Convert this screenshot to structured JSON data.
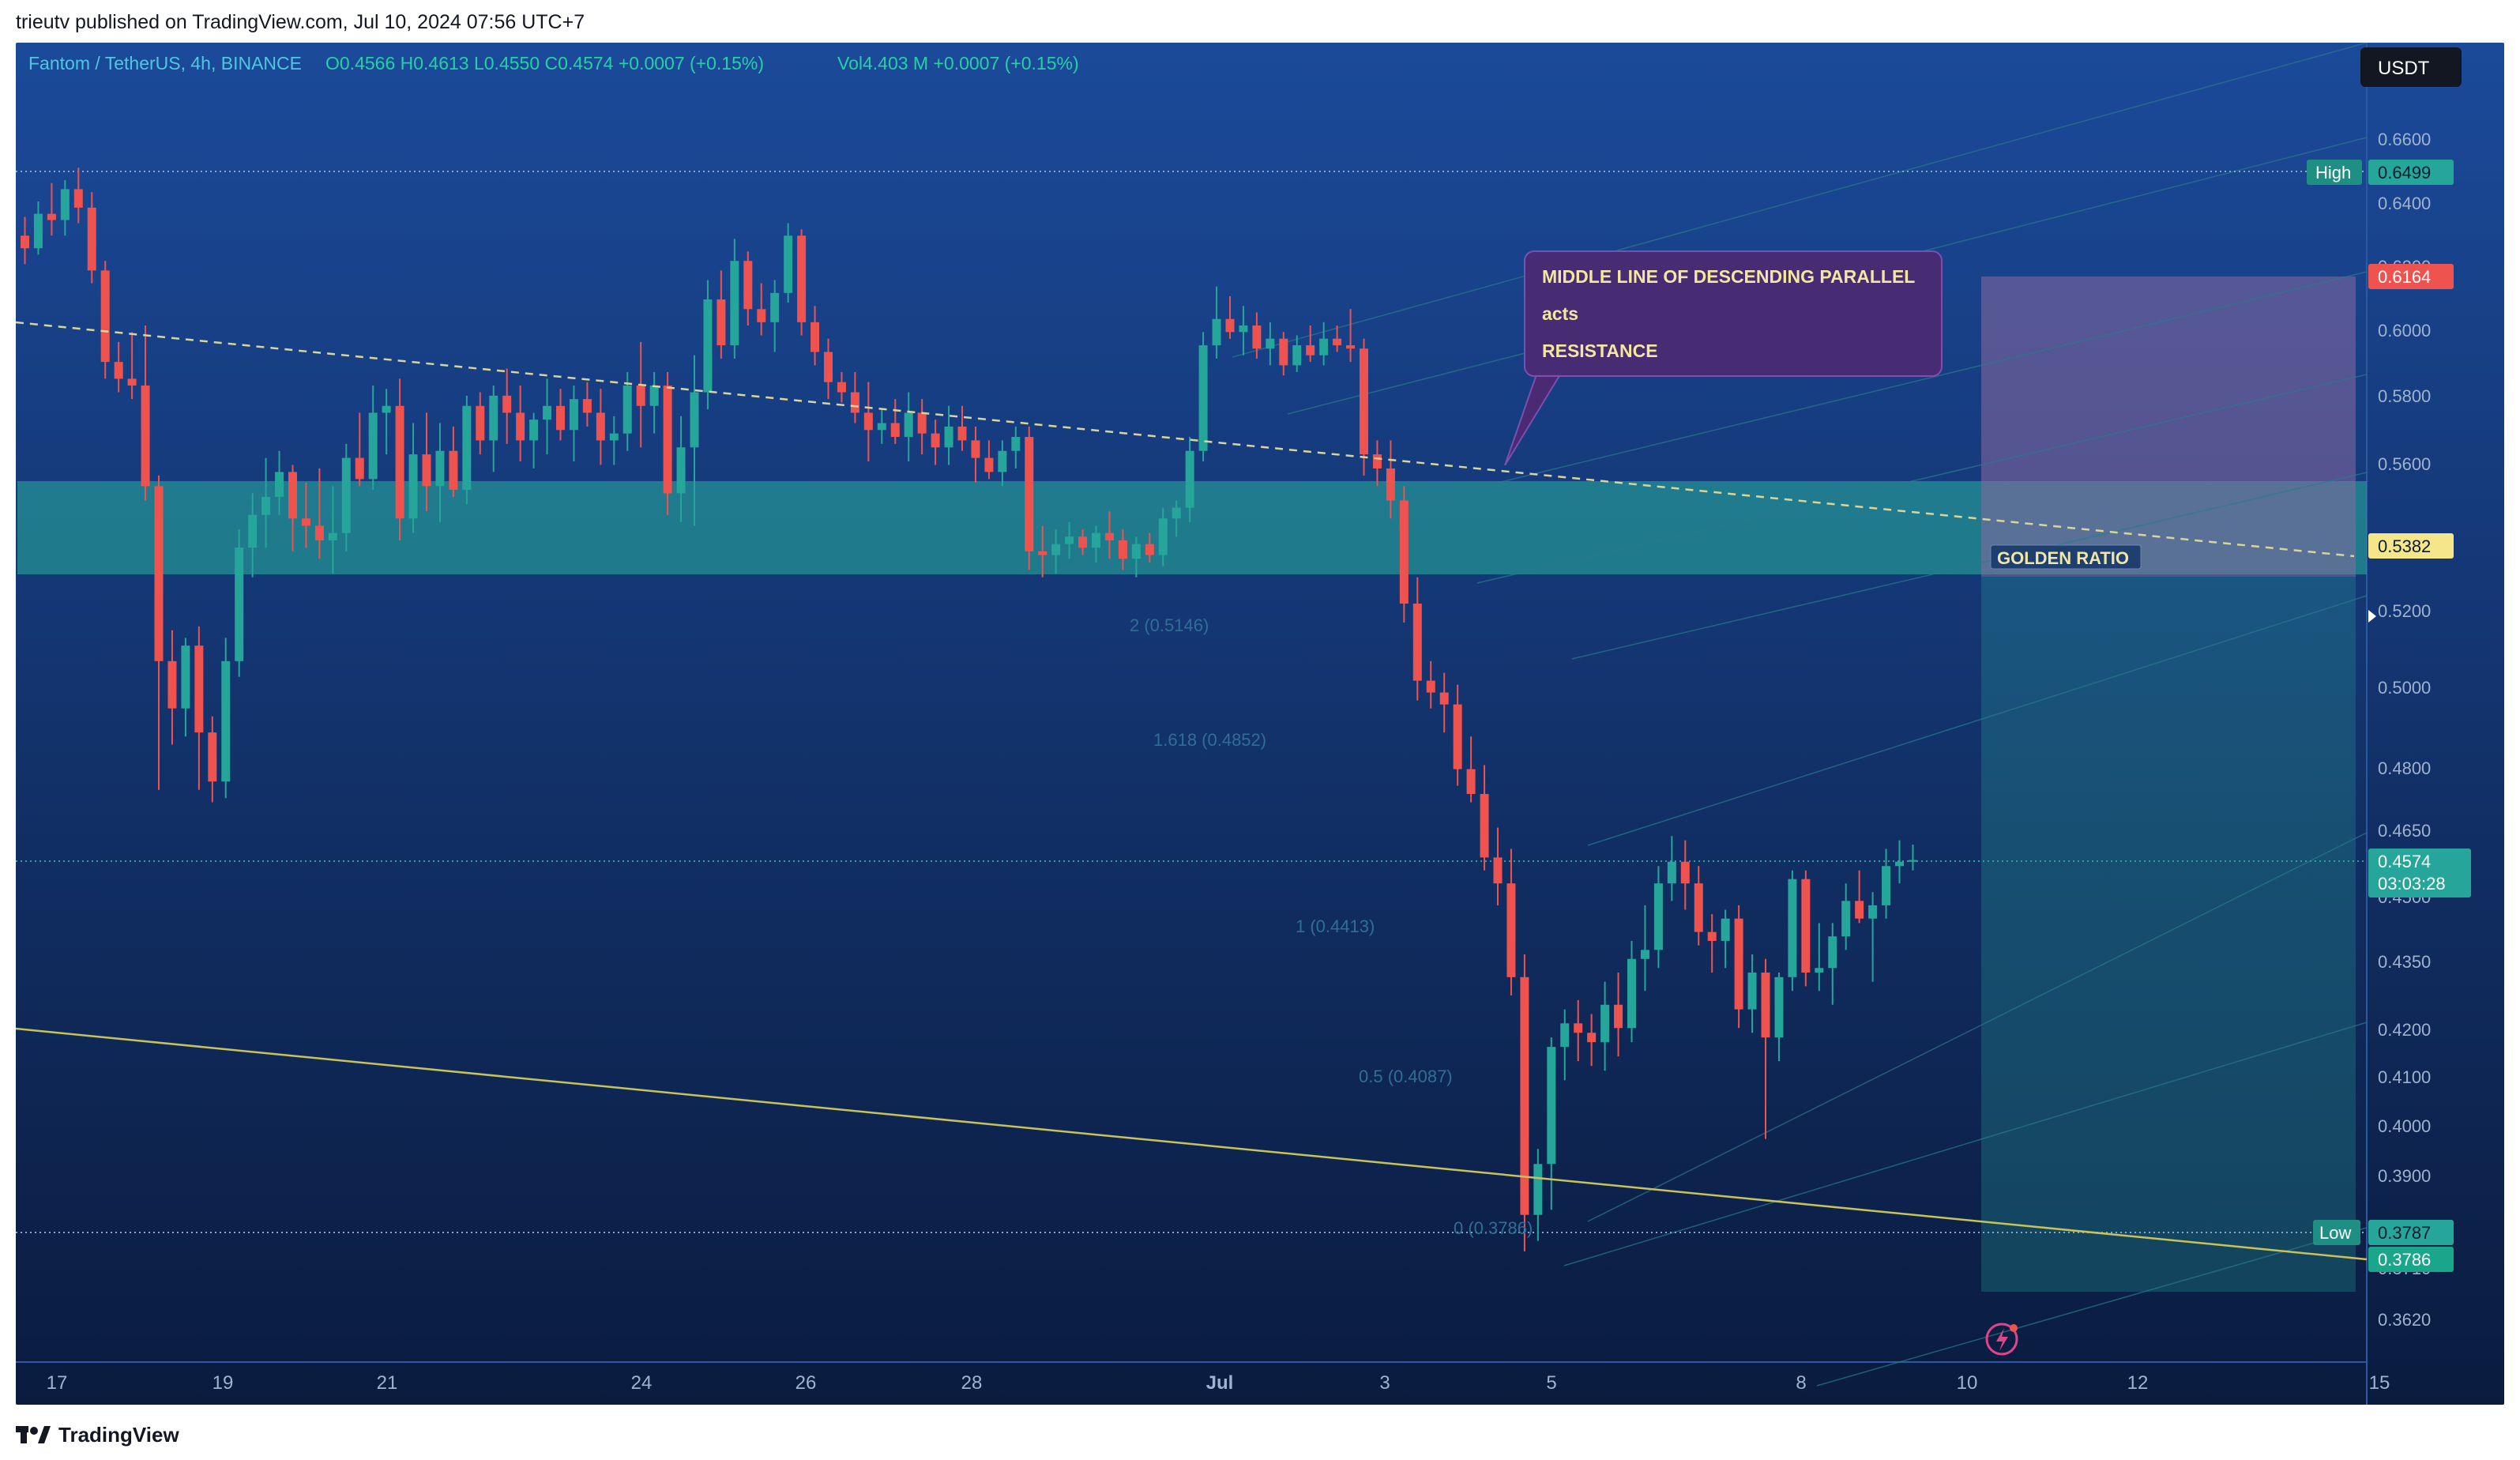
{
  "caption": "trieutv published on TradingView.com, Jul 10, 2024 07:56 UTC+7",
  "footer": {
    "brand": "TradingView",
    "logo_icon": "tradingview-logo-icon"
  },
  "header": {
    "symbol": "Fantom / TetherUS, 4h, BINANCE",
    "ohlc": "O0.4566 H0.4613 L0.4550 C0.4574 +0.0007 (+0.15%)",
    "volume": "Vol4.403 M +0.0007 (+0.15%)"
  },
  "currency_badge": "USDT",
  "colors": {
    "background_top": "#1b4a9a",
    "background_bottom": "#0a1b3e",
    "bullish": "#26a69a",
    "bearish": "#ef5350",
    "zone": "#26a69a",
    "annotation_bg": "#4a2a72",
    "trendline": "#c8c25a"
  },
  "annotation": {
    "line1": "MIDDLE LINE OF DESCENDING PARALLEL",
    "line2": "acts",
    "line3": "RESISTANCE"
  },
  "zone_label": "GOLDEN RATIO",
  "markers": {
    "high_label": "High",
    "high_value": "0.6499",
    "low_label": "Low",
    "low_value": "0.3787",
    "target_value": "0.6164",
    "golden_value": "0.5382",
    "current_value": "0.4574",
    "countdown": "03:03:28",
    "low_line_value": "0.3786"
  },
  "fib_labels": [
    "2 (0.5146)",
    "1.618 (0.4852)",
    "1 (0.4413)",
    "0.5 (0.4087)",
    "0 (0.3786)"
  ],
  "chart_data": {
    "type": "candlestick",
    "timeframe": "4h",
    "y_scale": "log",
    "ylim": [
      0.358,
      0.684
    ],
    "y_ticks": [
      "0.6600",
      "0.6400",
      "0.6200",
      "0.6000",
      "0.5800",
      "0.5600",
      "0.5200",
      "0.5000",
      "0.4800",
      "0.4650",
      "0.4500",
      "0.4350",
      "0.4200",
      "0.4100",
      "0.4000",
      "0.3900",
      "0.3710",
      "0.3620"
    ],
    "x_ticks": [
      "17",
      "19",
      "21",
      "24",
      "26",
      "28",
      "Jul",
      "3",
      "5",
      "8",
      "10",
      "12",
      "15"
    ],
    "candles_ohlc": [
      [
        0.628,
        0.634,
        0.619,
        0.624
      ],
      [
        0.624,
        0.639,
        0.622,
        0.635
      ],
      [
        0.635,
        0.645,
        0.628,
        0.633
      ],
      [
        0.633,
        0.646,
        0.628,
        0.643
      ],
      [
        0.643,
        0.65,
        0.632,
        0.637
      ],
      [
        0.637,
        0.642,
        0.613,
        0.617
      ],
      [
        0.617,
        0.62,
        0.584,
        0.589
      ],
      [
        0.589,
        0.595,
        0.58,
        0.584
      ],
      [
        0.584,
        0.598,
        0.578,
        0.582
      ],
      [
        0.582,
        0.6,
        0.549,
        0.553
      ],
      [
        0.553,
        0.556,
        0.474,
        0.506
      ],
      [
        0.506,
        0.514,
        0.485,
        0.494
      ],
      [
        0.494,
        0.512,
        0.487,
        0.51
      ],
      [
        0.51,
        0.515,
        0.474,
        0.488
      ],
      [
        0.488,
        0.492,
        0.471,
        0.476
      ],
      [
        0.476,
        0.512,
        0.472,
        0.506
      ],
      [
        0.506,
        0.541,
        0.502,
        0.536
      ],
      [
        0.536,
        0.551,
        0.528,
        0.545
      ],
      [
        0.545,
        0.561,
        0.536,
        0.55
      ],
      [
        0.55,
        0.563,
        0.545,
        0.557
      ],
      [
        0.557,
        0.559,
        0.535,
        0.544
      ],
      [
        0.544,
        0.554,
        0.536,
        0.542
      ],
      [
        0.542,
        0.558,
        0.533,
        0.538
      ],
      [
        0.538,
        0.553,
        0.529,
        0.54
      ],
      [
        0.54,
        0.565,
        0.535,
        0.561
      ],
      [
        0.561,
        0.574,
        0.553,
        0.555
      ],
      [
        0.555,
        0.582,
        0.552,
        0.574
      ],
      [
        0.574,
        0.581,
        0.562,
        0.576
      ],
      [
        0.576,
        0.584,
        0.538,
        0.544
      ],
      [
        0.544,
        0.571,
        0.54,
        0.562
      ],
      [
        0.562,
        0.574,
        0.546,
        0.553
      ],
      [
        0.553,
        0.571,
        0.543,
        0.563
      ],
      [
        0.563,
        0.57,
        0.55,
        0.552
      ],
      [
        0.552,
        0.579,
        0.548,
        0.576
      ],
      [
        0.576,
        0.58,
        0.562,
        0.566
      ],
      [
        0.566,
        0.582,
        0.557,
        0.579
      ],
      [
        0.579,
        0.587,
        0.565,
        0.574
      ],
      [
        0.574,
        0.582,
        0.56,
        0.566
      ],
      [
        0.566,
        0.574,
        0.558,
        0.572
      ],
      [
        0.572,
        0.584,
        0.562,
        0.576
      ],
      [
        0.576,
        0.581,
        0.566,
        0.569
      ],
      [
        0.569,
        0.582,
        0.56,
        0.578
      ],
      [
        0.578,
        0.583,
        0.57,
        0.574
      ],
      [
        0.574,
        0.581,
        0.559,
        0.566
      ],
      [
        0.566,
        0.573,
        0.559,
        0.568
      ],
      [
        0.568,
        0.586,
        0.563,
        0.582
      ],
      [
        0.582,
        0.595,
        0.564,
        0.576
      ],
      [
        0.576,
        0.586,
        0.568,
        0.582
      ],
      [
        0.582,
        0.586,
        0.545,
        0.551
      ],
      [
        0.551,
        0.573,
        0.543,
        0.564
      ],
      [
        0.564,
        0.591,
        0.542,
        0.58
      ],
      [
        0.58,
        0.614,
        0.575,
        0.608
      ],
      [
        0.608,
        0.617,
        0.59,
        0.594
      ],
      [
        0.594,
        0.627,
        0.59,
        0.62
      ],
      [
        0.62,
        0.623,
        0.6,
        0.605
      ],
      [
        0.605,
        0.613,
        0.597,
        0.601
      ],
      [
        0.601,
        0.614,
        0.592,
        0.61
      ],
      [
        0.61,
        0.632,
        0.607,
        0.628
      ],
      [
        0.628,
        0.63,
        0.597,
        0.601
      ],
      [
        0.601,
        0.606,
        0.588,
        0.592
      ],
      [
        0.592,
        0.596,
        0.578,
        0.583
      ],
      [
        0.583,
        0.586,
        0.577,
        0.58
      ],
      [
        0.58,
        0.586,
        0.571,
        0.574
      ],
      [
        0.574,
        0.583,
        0.56,
        0.569
      ],
      [
        0.569,
        0.575,
        0.565,
        0.571
      ],
      [
        0.571,
        0.578,
        0.565,
        0.567
      ],
      [
        0.567,
        0.58,
        0.56,
        0.574
      ],
      [
        0.574,
        0.578,
        0.562,
        0.568
      ],
      [
        0.568,
        0.572,
        0.559,
        0.564
      ],
      [
        0.564,
        0.576,
        0.559,
        0.57
      ],
      [
        0.57,
        0.576,
        0.563,
        0.566
      ],
      [
        0.566,
        0.57,
        0.554,
        0.561
      ],
      [
        0.561,
        0.566,
        0.555,
        0.557
      ],
      [
        0.557,
        0.566,
        0.553,
        0.563
      ],
      [
        0.563,
        0.57,
        0.558,
        0.567
      ],
      [
        0.567,
        0.57,
        0.53,
        0.535
      ],
      [
        0.535,
        0.542,
        0.528,
        0.534
      ],
      [
        0.534,
        0.541,
        0.529,
        0.537
      ],
      [
        0.537,
        0.543,
        0.533,
        0.539
      ],
      [
        0.539,
        0.541,
        0.534,
        0.536
      ],
      [
        0.536,
        0.542,
        0.532,
        0.54
      ],
      [
        0.54,
        0.546,
        0.533,
        0.538
      ],
      [
        0.538,
        0.541,
        0.53,
        0.533
      ],
      [
        0.533,
        0.539,
        0.528,
        0.537
      ],
      [
        0.537,
        0.54,
        0.532,
        0.534
      ],
      [
        0.534,
        0.547,
        0.531,
        0.544
      ],
      [
        0.544,
        0.549,
        0.539,
        0.547
      ],
      [
        0.547,
        0.567,
        0.543,
        0.563
      ],
      [
        0.563,
        0.598,
        0.56,
        0.594
      ],
      [
        0.594,
        0.612,
        0.59,
        0.602
      ],
      [
        0.602,
        0.609,
        0.596,
        0.598
      ],
      [
        0.598,
        0.606,
        0.591,
        0.6
      ],
      [
        0.6,
        0.604,
        0.59,
        0.593
      ],
      [
        0.593,
        0.601,
        0.588,
        0.596
      ],
      [
        0.596,
        0.598,
        0.585,
        0.588
      ],
      [
        0.588,
        0.597,
        0.586,
        0.594
      ],
      [
        0.594,
        0.6,
        0.589,
        0.591
      ],
      [
        0.591,
        0.601,
        0.588,
        0.596
      ],
      [
        0.596,
        0.6,
        0.592,
        0.594
      ],
      [
        0.594,
        0.605,
        0.589,
        0.593
      ],
      [
        0.593,
        0.596,
        0.556,
        0.562
      ],
      [
        0.562,
        0.566,
        0.553,
        0.558
      ],
      [
        0.558,
        0.566,
        0.544,
        0.549
      ],
      [
        0.549,
        0.553,
        0.516,
        0.521
      ],
      [
        0.521,
        0.528,
        0.496,
        0.501
      ],
      [
        0.501,
        0.506,
        0.494,
        0.498
      ],
      [
        0.498,
        0.503,
        0.488,
        0.495
      ],
      [
        0.495,
        0.5,
        0.475,
        0.479
      ],
      [
        0.479,
        0.487,
        0.471,
        0.473
      ],
      [
        0.473,
        0.48,
        0.455,
        0.458
      ],
      [
        0.458,
        0.465,
        0.447,
        0.452
      ],
      [
        0.452,
        0.46,
        0.427,
        0.431
      ],
      [
        0.431,
        0.436,
        0.375,
        0.382
      ],
      [
        0.382,
        0.395,
        0.377,
        0.392
      ],
      [
        0.392,
        0.418,
        0.383,
        0.416
      ],
      [
        0.416,
        0.424,
        0.409,
        0.421
      ],
      [
        0.421,
        0.426,
        0.413,
        0.419
      ],
      [
        0.419,
        0.423,
        0.412,
        0.417
      ],
      [
        0.417,
        0.43,
        0.411,
        0.425
      ],
      [
        0.425,
        0.432,
        0.414,
        0.42
      ],
      [
        0.42,
        0.439,
        0.417,
        0.435
      ],
      [
        0.435,
        0.447,
        0.428,
        0.437
      ],
      [
        0.437,
        0.456,
        0.433,
        0.452
      ],
      [
        0.452,
        0.463,
        0.448,
        0.457
      ],
      [
        0.457,
        0.462,
        0.446,
        0.452
      ],
      [
        0.452,
        0.456,
        0.438,
        0.441
      ],
      [
        0.441,
        0.445,
        0.432,
        0.439
      ],
      [
        0.439,
        0.446,
        0.433,
        0.444
      ],
      [
        0.444,
        0.447,
        0.42,
        0.424
      ],
      [
        0.424,
        0.436,
        0.419,
        0.432
      ],
      [
        0.432,
        0.435,
        0.397,
        0.418
      ],
      [
        0.418,
        0.432,
        0.413,
        0.431
      ],
      [
        0.431,
        0.455,
        0.428,
        0.453
      ],
      [
        0.453,
        0.455,
        0.429,
        0.432
      ],
      [
        0.432,
        0.443,
        0.428,
        0.433
      ],
      [
        0.433,
        0.443,
        0.425,
        0.44
      ],
      [
        0.44,
        0.452,
        0.437,
        0.448
      ],
      [
        0.448,
        0.455,
        0.443,
        0.444
      ],
      [
        0.444,
        0.45,
        0.43,
        0.447
      ],
      [
        0.447,
        0.46,
        0.444,
        0.456
      ],
      [
        0.456,
        0.462,
        0.452,
        0.457
      ],
      [
        0.457,
        0.461,
        0.455,
        0.4574
      ]
    ]
  }
}
